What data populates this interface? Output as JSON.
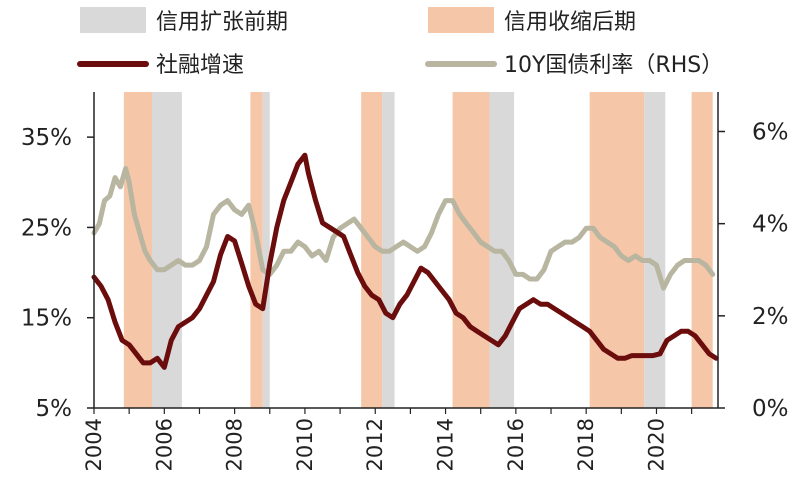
{
  "chart_data": {
    "type": "line",
    "title": "",
    "xlabel": "",
    "ylabel_left": "",
    "ylabel_right": "",
    "xlim": [
      2004.0,
      2021.75
    ],
    "ylim_left": [
      5,
      40
    ],
    "ylim_right": [
      0,
      6.857
    ],
    "x_ticks": [
      "2004",
      "2006",
      "2008",
      "2010",
      "2012",
      "2014",
      "2016",
      "2018",
      "2020"
    ],
    "x_tick_values": [
      2004,
      2006,
      2008,
      2010,
      2012,
      2014,
      2016,
      2018,
      2020
    ],
    "y_ticks_left": [
      "5%",
      "15%",
      "25%",
      "35%"
    ],
    "y_tick_values_left": [
      5,
      15,
      25,
      35
    ],
    "y_ticks_right": [
      "0%",
      "2%",
      "4%",
      "6%"
    ],
    "y_tick_values_right": [
      0,
      2,
      4,
      6
    ],
    "legend": {
      "expansion": "信用扩张前期",
      "contraction": "信用收缩后期",
      "tsf": "社融增速",
      "bond": "10Y国债利率（RHS）"
    },
    "colors": {
      "expansion": "#d9d9d9",
      "contraction": "#f6c6a8",
      "tsf": "#6b0d0d",
      "bond": "#b8b5a0",
      "axis": "#222222"
    },
    "shaded_periods": [
      {
        "type": "contraction",
        "start": 2004.85,
        "end": 2005.65
      },
      {
        "type": "expansion",
        "start": 2005.65,
        "end": 2006.5
      },
      {
        "type": "contraction",
        "start": 2008.45,
        "end": 2008.8
      },
      {
        "type": "expansion",
        "start": 2008.8,
        "end": 2009.0
      },
      {
        "type": "contraction",
        "start": 2011.6,
        "end": 2012.2
      },
      {
        "type": "expansion",
        "start": 2012.2,
        "end": 2012.55
      },
      {
        "type": "contraction",
        "start": 2014.2,
        "end": 2015.25
      },
      {
        "type": "expansion",
        "start": 2015.25,
        "end": 2015.95
      },
      {
        "type": "contraction",
        "start": 2018.1,
        "end": 2019.65
      },
      {
        "type": "expansion",
        "start": 2019.65,
        "end": 2020.25
      },
      {
        "type": "contraction",
        "start": 2021.0,
        "end": 2021.6
      }
    ],
    "series": [
      {
        "name": "社融增速",
        "axis": "left",
        "x": [
          2004.0,
          2004.2,
          2004.4,
          2004.6,
          2004.8,
          2005.0,
          2005.2,
          2005.4,
          2005.6,
          2005.8,
          2006.0,
          2006.2,
          2006.4,
          2006.6,
          2006.8,
          2007.0,
          2007.2,
          2007.4,
          2007.6,
          2007.8,
          2008.0,
          2008.2,
          2008.4,
          2008.6,
          2008.8,
          2009.0,
          2009.2,
          2009.4,
          2009.6,
          2009.8,
          2010.0,
          2010.1,
          2010.3,
          2010.5,
          2010.7,
          2010.9,
          2011.1,
          2011.3,
          2011.5,
          2011.7,
          2011.9,
          2012.1,
          2012.3,
          2012.5,
          2012.7,
          2012.9,
          2013.1,
          2013.3,
          2013.5,
          2013.7,
          2013.9,
          2014.1,
          2014.3,
          2014.5,
          2014.7,
          2014.9,
          2015.1,
          2015.3,
          2015.5,
          2015.7,
          2015.9,
          2016.1,
          2016.3,
          2016.5,
          2016.7,
          2016.9,
          2017.1,
          2017.3,
          2017.5,
          2017.7,
          2017.9,
          2018.1,
          2018.3,
          2018.5,
          2018.7,
          2018.9,
          2019.1,
          2019.3,
          2019.5,
          2019.7,
          2019.9,
          2020.1,
          2020.3,
          2020.5,
          2020.7,
          2020.9,
          2021.1,
          2021.3,
          2021.5,
          2021.7
        ],
        "values": [
          19.5,
          18.5,
          17.0,
          14.5,
          12.5,
          12.0,
          11.0,
          10.0,
          10.0,
          10.5,
          9.5,
          12.5,
          14.0,
          14.5,
          15.0,
          16.0,
          17.5,
          19.0,
          22.0,
          24.0,
          23.5,
          21.0,
          18.5,
          16.5,
          16.0,
          21.0,
          25.0,
          28.0,
          30.0,
          32.0,
          33.0,
          31.0,
          28.0,
          25.5,
          25.0,
          24.5,
          24.0,
          22.0,
          20.0,
          18.5,
          17.5,
          17.0,
          15.5,
          15.0,
          16.5,
          17.5,
          19.0,
          20.5,
          20.0,
          19.0,
          18.0,
          17.0,
          15.5,
          15.0,
          14.0,
          13.5,
          13.0,
          12.5,
          12.0,
          13.0,
          14.5,
          16.0,
          16.5,
          17.0,
          16.5,
          16.5,
          16.0,
          15.5,
          15.0,
          14.5,
          14.0,
          13.5,
          12.5,
          11.5,
          11.0,
          10.5,
          10.5,
          10.8,
          10.8,
          10.8,
          10.8,
          11.0,
          12.5,
          13.0,
          13.5,
          13.5,
          13.0,
          12.0,
          11.0,
          10.5
        ]
      },
      {
        "name": "10Y国债利率（RHS）",
        "axis": "right",
        "x": [
          2004.0,
          2004.15,
          2004.3,
          2004.45,
          2004.6,
          2004.75,
          2004.9,
          2005.0,
          2005.15,
          2005.3,
          2005.45,
          2005.6,
          2005.8,
          2006.0,
          2006.2,
          2006.4,
          2006.6,
          2006.8,
          2007.0,
          2007.2,
          2007.4,
          2007.6,
          2007.8,
          2008.0,
          2008.2,
          2008.4,
          2008.6,
          2008.8,
          2009.0,
          2009.2,
          2009.4,
          2009.6,
          2009.8,
          2010.0,
          2010.2,
          2010.4,
          2010.6,
          2010.8,
          2011.0,
          2011.2,
          2011.4,
          2011.6,
          2011.8,
          2012.0,
          2012.2,
          2012.4,
          2012.6,
          2012.8,
          2013.0,
          2013.2,
          2013.4,
          2013.6,
          2013.8,
          2014.0,
          2014.2,
          2014.4,
          2014.6,
          2014.8,
          2015.0,
          2015.2,
          2015.4,
          2015.6,
          2015.8,
          2016.0,
          2016.2,
          2016.4,
          2016.6,
          2016.8,
          2017.0,
          2017.2,
          2017.4,
          2017.6,
          2017.8,
          2018.0,
          2018.2,
          2018.4,
          2018.6,
          2018.8,
          2019.0,
          2019.2,
          2019.4,
          2019.6,
          2019.8,
          2020.0,
          2020.2,
          2020.4,
          2020.6,
          2020.8,
          2021.0,
          2021.2,
          2021.4,
          2021.6
        ],
        "values": [
          3.8,
          4.0,
          4.5,
          4.6,
          5.0,
          4.8,
          5.2,
          4.9,
          4.2,
          3.8,
          3.4,
          3.2,
          3.0,
          3.0,
          3.1,
          3.2,
          3.1,
          3.1,
          3.2,
          3.5,
          4.2,
          4.4,
          4.5,
          4.3,
          4.2,
          4.4,
          3.8,
          3.0,
          2.9,
          3.1,
          3.4,
          3.4,
          3.6,
          3.5,
          3.3,
          3.4,
          3.2,
          3.7,
          3.9,
          4.0,
          4.1,
          3.9,
          3.7,
          3.5,
          3.4,
          3.4,
          3.5,
          3.6,
          3.5,
          3.4,
          3.5,
          3.8,
          4.2,
          4.5,
          4.5,
          4.2,
          4.0,
          3.8,
          3.6,
          3.5,
          3.4,
          3.4,
          3.2,
          2.9,
          2.9,
          2.8,
          2.8,
          3.0,
          3.4,
          3.5,
          3.6,
          3.6,
          3.7,
          3.9,
          3.9,
          3.7,
          3.6,
          3.5,
          3.3,
          3.2,
          3.3,
          3.2,
          3.2,
          3.1,
          2.6,
          2.9,
          3.1,
          3.2,
          3.2,
          3.2,
          3.1,
          2.9
        ]
      }
    ]
  }
}
